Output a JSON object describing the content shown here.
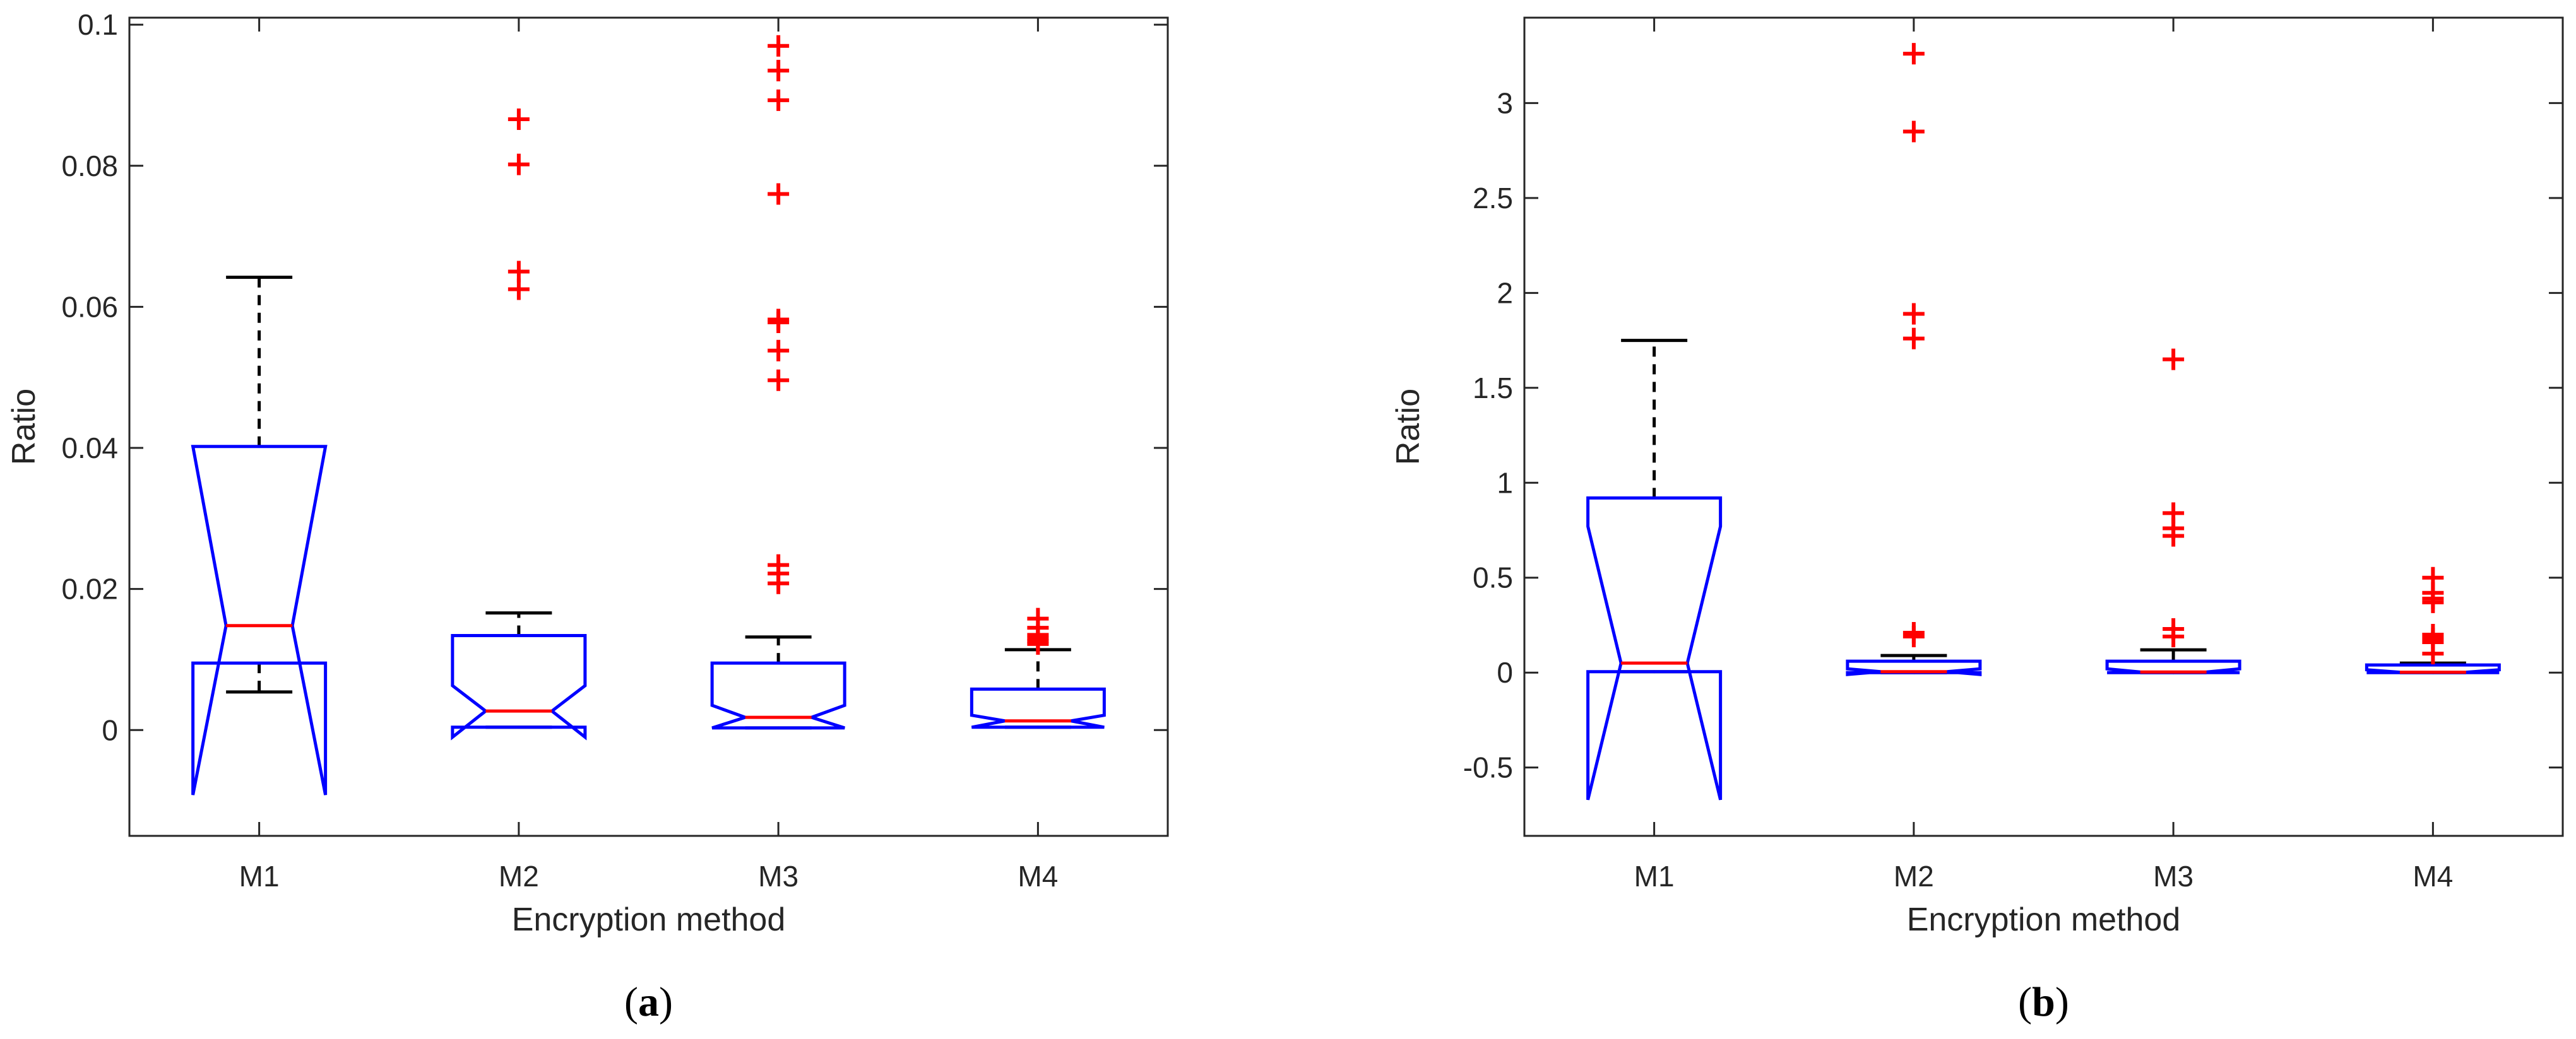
{
  "colors": {
    "box": "#0000ff",
    "median": "#ff0000",
    "whisker": "#000000",
    "outlier": "#ff0000",
    "frame": "#262626"
  },
  "chart_data": [
    {
      "type": "box",
      "caption_letter": "a",
      "xlabel": "Encryption method",
      "ylabel": "Ratio",
      "categories": [
        "M1",
        "M2",
        "M3",
        "M4"
      ],
      "ylim": [
        -0.015,
        0.101
      ],
      "yticks": [
        0,
        0.02,
        0.04,
        0.06,
        0.08,
        0.1
      ],
      "ytick_labels": [
        "0",
        "0.02",
        "0.04",
        "0.06",
        "0.08",
        "0.1"
      ],
      "boxes": [
        {
          "name": "M1",
          "q1": 0.0095,
          "median": 0.0148,
          "q3": 0.0402,
          "notch_low": -0.0092,
          "notch_high": 0.0402,
          "whisker_low": 0.0054,
          "whisker_high": 0.0642,
          "outliers": []
        },
        {
          "name": "M2",
          "q1": 0.0004,
          "median": 0.0027,
          "q3": 0.0134,
          "notch_low": -0.001,
          "notch_high": 0.0063,
          "whisker_low": 0.0004,
          "whisker_high": 0.0166,
          "outliers": [
            0.0866,
            0.0802,
            0.065,
            0.0625
          ]
        },
        {
          "name": "M3",
          "q1": 0.0003,
          "median": 0.0018,
          "q3": 0.0095,
          "notch_low": 0.0003,
          "notch_high": 0.0035,
          "whisker_low": 0.0003,
          "whisker_high": 0.0132,
          "outliers": [
            0.097,
            0.0935,
            0.0893,
            0.076,
            0.0582,
            0.0578,
            0.0538,
            0.0496,
            0.0234,
            0.0222,
            0.0208
          ]
        },
        {
          "name": "M4",
          "q1": 0.0004,
          "median": 0.0013,
          "q3": 0.0058,
          "notch_low": 0.0004,
          "notch_high": 0.0021,
          "whisker_low": 0.0004,
          "whisker_high": 0.0114,
          "outliers": [
            0.0158,
            0.0145,
            0.0135,
            0.013,
            0.0126,
            0.0122
          ]
        }
      ]
    },
    {
      "type": "box",
      "caption_letter": "b",
      "xlabel": "Encryption method",
      "ylabel": "Ratio",
      "categories": [
        "M1",
        "M2",
        "M3",
        "M4"
      ],
      "ylim": [
        -0.86,
        3.45
      ],
      "yticks": [
        -0.5,
        0,
        0.5,
        1,
        1.5,
        2,
        2.5,
        3
      ],
      "ytick_labels": [
        "-0.5",
        "0",
        "0.5",
        "1",
        "1.5",
        "2",
        "2.5",
        "3"
      ],
      "boxes": [
        {
          "name": "M1",
          "q1": 0.005,
          "median": 0.05,
          "q3": 0.92,
          "notch_low": -0.67,
          "notch_high": 0.77,
          "whisker_low": 0.005,
          "whisker_high": 1.75,
          "outliers": []
        },
        {
          "name": "M2",
          "q1": 0.0,
          "median": 0.005,
          "q3": 0.06,
          "notch_low": -0.01,
          "notch_high": 0.02,
          "whisker_low": 0.0,
          "whisker_high": 0.09,
          "outliers": [
            3.26,
            2.85,
            1.89,
            1.76,
            0.21,
            0.19
          ]
        },
        {
          "name": "M3",
          "q1": 0.0,
          "median": 0.003,
          "q3": 0.06,
          "notch_low": 0.0,
          "notch_high": 0.02,
          "whisker_low": 0.0,
          "whisker_high": 0.12,
          "outliers": [
            1.65,
            0.84,
            0.76,
            0.72,
            0.23,
            0.19
          ]
        },
        {
          "name": "M4",
          "q1": 0.0,
          "median": 0.002,
          "q3": 0.04,
          "notch_low": 0.0,
          "notch_high": 0.015,
          "whisker_low": 0.0,
          "whisker_high": 0.05,
          "outliers": [
            0.5,
            0.42,
            0.39,
            0.37,
            0.2,
            0.18,
            0.16,
            0.1
          ]
        }
      ]
    }
  ]
}
